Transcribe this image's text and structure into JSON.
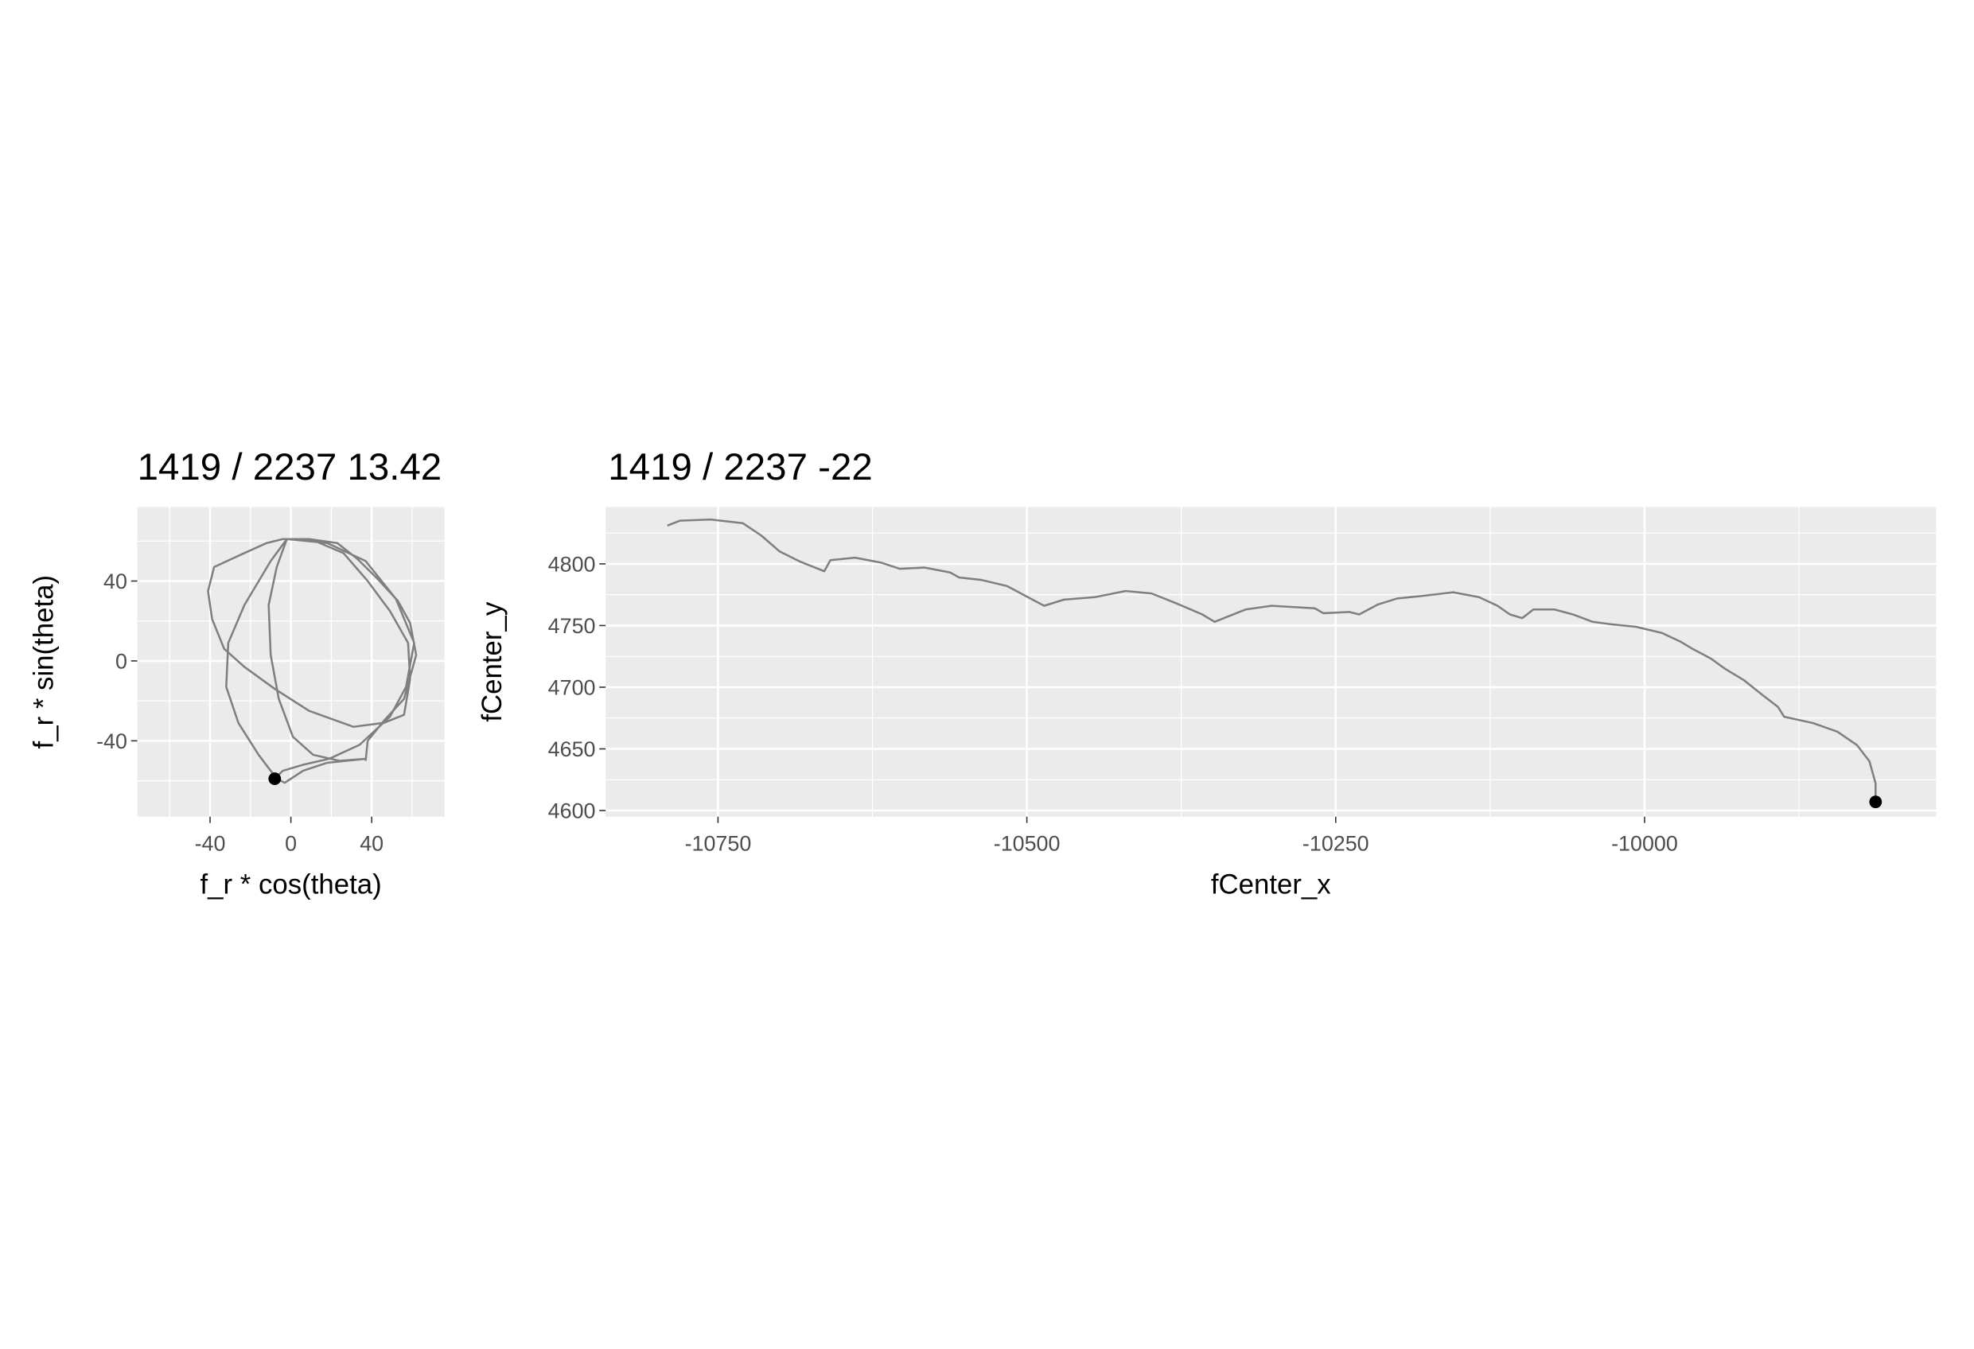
{
  "chart_data": [
    {
      "type": "line",
      "title": "1419 / 2237 13.42",
      "xlabel": "f_r * cos(theta)",
      "ylabel": "f_r * sin(theta)",
      "x": [
        37,
        38,
        46,
        56,
        62,
        59,
        53,
        43,
        33,
        23,
        9,
        -4,
        -12,
        -23,
        -38,
        -41,
        -39,
        -33,
        -23,
        -8,
        9,
        31,
        46,
        56,
        59,
        58,
        49,
        38,
        26,
        12,
        -2,
        -7,
        -11,
        -10,
        -6,
        1,
        11,
        24,
        37,
        18,
        6,
        -3,
        -7,
        -16,
        -26,
        -32,
        -31,
        -23,
        -10,
        -2,
        18,
        37,
        52,
        61,
        57,
        49,
        34,
        19,
        6,
        -4,
        -8
      ],
      "values": [
        -50,
        -40,
        -30,
        -19,
        3,
        19,
        30,
        41,
        51,
        59,
        61,
        61,
        59,
        54,
        47,
        35,
        21,
        6,
        -3,
        -14,
        -25,
        -33,
        -31,
        -27,
        -9,
        9,
        25,
        40,
        54,
        60,
        61,
        47,
        28,
        3,
        -19,
        -38,
        -47,
        -50,
        -49,
        -51,
        -55,
        -61,
        -59,
        -47,
        -31,
        -13,
        9,
        28,
        50,
        61,
        59,
        50,
        31,
        9,
        -13,
        -28,
        -42,
        -49,
        -52,
        -55,
        -59
      ],
      "color": "#7f7f7f",
      "point": {
        "x": -8,
        "y": -59,
        "color": "#000000"
      },
      "xlim": [
        -76,
        76
      ],
      "ylim": [
        -78,
        77
      ],
      "xticks": [
        -40,
        0,
        40
      ],
      "yticks": [
        -40,
        0,
        40
      ],
      "xminor": [
        -60,
        -20,
        20,
        60
      ],
      "yminor": [
        -60,
        -20,
        20,
        60
      ],
      "grid": true
    },
    {
      "type": "line",
      "title": "1419 / 2237 -22",
      "xlabel": "fCenter_x",
      "ylabel": "fCenter_y",
      "x": [
        -10791,
        -10781,
        -10756,
        -10730,
        -10715,
        -10700,
        -10684,
        -10664,
        -10659,
        -10639,
        -10618,
        -10603,
        -10583,
        -10562,
        -10555,
        -10537,
        -10516,
        -10501,
        -10486,
        -10470,
        -10445,
        -10420,
        -10399,
        -10379,
        -10358,
        -10348,
        -10338,
        -10323,
        -10302,
        -10267,
        -10260,
        -10239,
        -10231,
        -10216,
        -10200,
        -10180,
        -10155,
        -10134,
        -10119,
        -10109,
        -10099,
        -10090,
        -10073,
        -10058,
        -10042,
        -10027,
        -10007,
        -9986,
        -9971,
        -9961,
        -9946,
        -9935,
        -9920,
        -9905,
        -9892,
        -9887,
        -9864,
        -9844,
        -9828,
        -9818,
        -9813,
        -9813
      ],
      "values": [
        4831,
        4835,
        4836,
        4833,
        4823,
        4810,
        4802,
        4794,
        4803,
        4805,
        4801,
        4796,
        4797,
        4793,
        4789,
        4787,
        4782,
        4774,
        4766,
        4771,
        4773,
        4778,
        4776,
        4768,
        4759,
        4753,
        4757,
        4763,
        4766,
        4764,
        4760,
        4761,
        4759,
        4767,
        4772,
        4774,
        4777,
        4773,
        4766,
        4759,
        4756,
        4763,
        4763,
        4759,
        4753,
        4751,
        4749,
        4744,
        4737,
        4731,
        4723,
        4715,
        4706,
        4694,
        4684,
        4676,
        4671,
        4664,
        4653,
        4640,
        4622,
        4607
      ],
      "color": "#7f7f7f",
      "point": {
        "x": -9813,
        "y": 4607,
        "color": "#000000"
      },
      "xlim": [
        -10841,
        -9764
      ],
      "ylim": [
        4595,
        4846
      ],
      "xticks": [
        -10750,
        -10500,
        -10250,
        -10000
      ],
      "yticks": [
        4600,
        4650,
        4700,
        4750,
        4800
      ],
      "xminor": [
        -10625,
        -10375,
        -10125,
        -9875
      ],
      "yminor": [
        4625,
        4675,
        4725,
        4775,
        4825
      ],
      "grid": true
    }
  ]
}
